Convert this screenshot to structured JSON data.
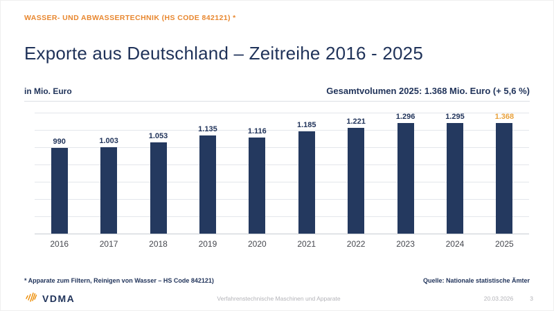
{
  "slide": {
    "kicker": "WASSER- UND ABWASSERTECHNIK (HS CODE 842121) *",
    "title": "Exporte aus Deutschland – Zeitreihe 2016 - 2025",
    "unit_label": "in Mio. Euro",
    "total_label": "Gesamtvolumen 2025: 1.368 Mio. Euro (+ 5,6 %)",
    "footnote": "* Apparate zum Filtern, Reinigen von Wasser – HS Code 842121)",
    "source": "Quelle: Nationale statistische Ämter"
  },
  "footer": {
    "logo_text": "VDMA",
    "center_text": "Verfahrenstechnische Maschinen und Apparate",
    "date": "20.03.2026",
    "page_number": "3"
  },
  "colors": {
    "navy": "#1F3259",
    "bar_navy": "#24395F",
    "orange": "#E8872F",
    "highlight_orange": "#E9A13B",
    "gridline": "#E3E6EB",
    "axis_gray": "#C6CBD3",
    "footer_gray": "#B3B3B8"
  },
  "chart_data": {
    "type": "bar",
    "title": "Exporte aus Deutschland – Zeitreihe 2016 - 2025",
    "subtitle": "Gesamtvolumen 2025: 1.368 Mio. Euro (+ 5,6 %)",
    "ylabel": "in Mio. Euro",
    "xlabel": "",
    "categories": [
      "2016",
      "2017",
      "2018",
      "2019",
      "2020",
      "2021",
      "2022",
      "2023",
      "2024",
      "2025"
    ],
    "values": [
      990,
      1003,
      1053,
      1135,
      1116,
      1185,
      1221,
      1296,
      1295,
      1368
    ],
    "value_labels": [
      "990",
      "1.003",
      "1.053",
      "1.135",
      "1.116",
      "1.185",
      "1.221",
      "1.296",
      "1.295",
      "1.368"
    ],
    "highlight_index": 9,
    "ylim": [
      0,
      1400
    ],
    "grid_step": 200,
    "grid": true,
    "legend": false,
    "bar_color": "#24395F",
    "highlight_label_color": "#E9A13B"
  }
}
